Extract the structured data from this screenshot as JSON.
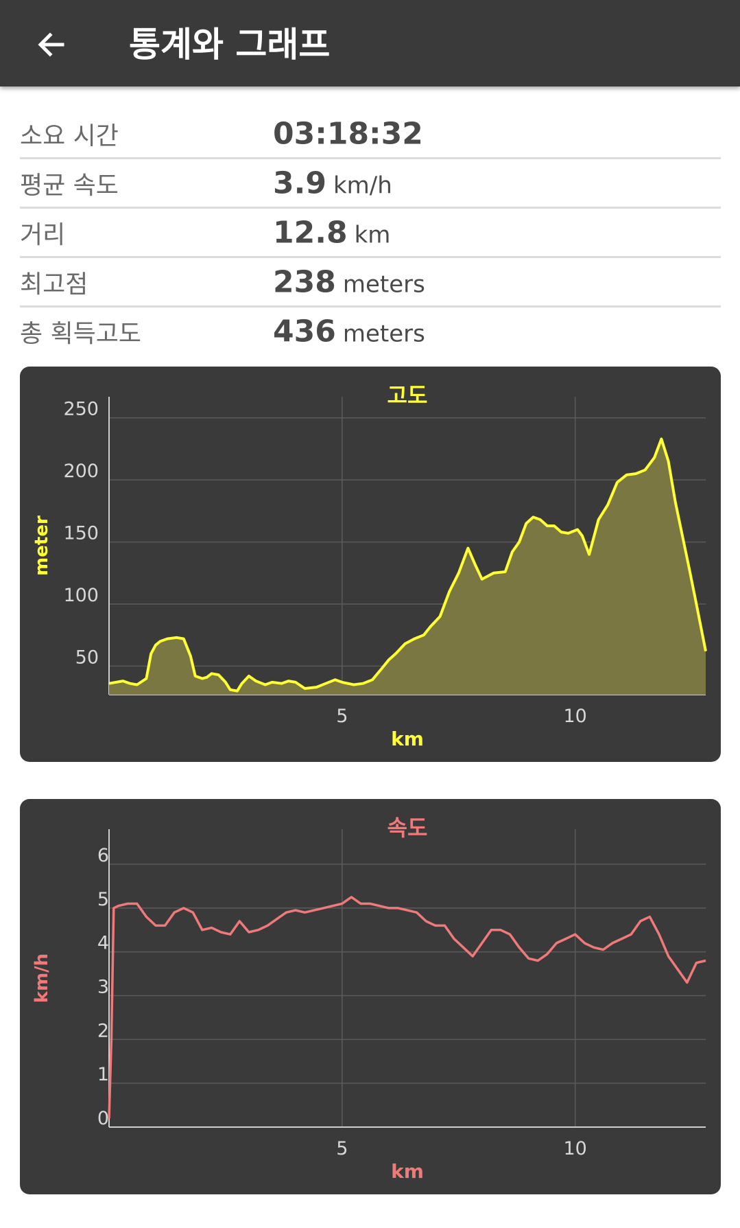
{
  "header": {
    "title": "통계와 그래프",
    "back_icon": "arrow-left-icon"
  },
  "stats": [
    {
      "label": "소요 시간",
      "value": "03:18:32",
      "unit": ""
    },
    {
      "label": "평균 속도",
      "value": "3.9",
      "unit": "km/h"
    },
    {
      "label": "거리",
      "value": "12.8",
      "unit": "km"
    },
    {
      "label": "최고점",
      "value": "238",
      "unit": "meters"
    },
    {
      "label": "총 획득고도",
      "value": "436",
      "unit": "meters"
    }
  ],
  "chart_data": [
    {
      "type": "area",
      "title": "고도",
      "xlabel": "km",
      "ylabel": "meter",
      "color": "#ffff33",
      "fill": "#7a7742",
      "xlim": [
        0,
        12.8
      ],
      "ylim": [
        27,
        267
      ],
      "xticks": [
        5,
        10
      ],
      "yticks": [
        50,
        100,
        150,
        200,
        250
      ],
      "x": [
        0,
        0.3,
        0.45,
        0.6,
        0.8,
        0.9,
        1.0,
        1.1,
        1.25,
        1.45,
        1.6,
        1.75,
        1.85,
        2.0,
        2.1,
        2.2,
        2.35,
        2.5,
        2.6,
        2.75,
        2.85,
        3.0,
        3.15,
        3.35,
        3.5,
        3.7,
        3.85,
        4.0,
        4.2,
        4.45,
        4.65,
        4.85,
        5.0,
        5.25,
        5.45,
        5.65,
        5.85,
        6.0,
        6.15,
        6.35,
        6.55,
        6.75,
        6.9,
        7.1,
        7.3,
        7.5,
        7.7,
        7.85,
        8.0,
        8.1,
        8.25,
        8.5,
        8.65,
        8.8,
        8.95,
        9.1,
        9.25,
        9.4,
        9.55,
        9.7,
        9.85,
        10.05,
        10.15,
        10.3,
        10.5,
        10.7,
        10.9,
        11.1,
        11.3,
        11.5,
        11.7,
        11.85,
        12.0,
        12.15,
        12.3,
        12.45,
        12.6,
        12.8
      ],
      "y": [
        36,
        38,
        36,
        35,
        40,
        60,
        67,
        70,
        72,
        73,
        72,
        58,
        42,
        40,
        41,
        44,
        43,
        37,
        31,
        30,
        36,
        42,
        38,
        35,
        37,
        36,
        38,
        37,
        32,
        33,
        36,
        39,
        37,
        35,
        36,
        39,
        48,
        55,
        60,
        68,
        72,
        75,
        82,
        90,
        110,
        125,
        145,
        132,
        120,
        122,
        125,
        126,
        142,
        150,
        165,
        170,
        168,
        163,
        163,
        158,
        157,
        160,
        155,
        140,
        168,
        180,
        198,
        204,
        205,
        208,
        218,
        233,
        215,
        182,
        155,
        128,
        100,
        62
      ]
    },
    {
      "type": "line",
      "title": "속도",
      "xlabel": "km",
      "ylabel": "km/h",
      "color": "#f07a7a",
      "xlim": [
        0,
        12.8
      ],
      "ylim": [
        0,
        6.8
      ],
      "xticks": [
        5,
        10
      ],
      "yticks": [
        0,
        1,
        2,
        3,
        4,
        5,
        6
      ],
      "x": [
        0,
        0.05,
        0.1,
        0.2,
        0.4,
        0.6,
        0.8,
        1.0,
        1.2,
        1.4,
        1.6,
        1.8,
        2.0,
        2.2,
        2.4,
        2.6,
        2.8,
        3.0,
        3.2,
        3.4,
        3.6,
        3.8,
        4.0,
        4.2,
        4.4,
        4.6,
        4.8,
        5.0,
        5.2,
        5.4,
        5.6,
        5.8,
        6.0,
        6.2,
        6.4,
        6.6,
        6.8,
        7.0,
        7.2,
        7.4,
        7.6,
        7.8,
        8.0,
        8.2,
        8.4,
        8.6,
        8.8,
        9.0,
        9.2,
        9.4,
        9.6,
        9.8,
        10.0,
        10.2,
        10.4,
        10.6,
        10.8,
        11.0,
        11.2,
        11.4,
        11.6,
        11.8,
        12.0,
        12.2,
        12.4,
        12.6,
        12.8
      ],
      "y": [
        0.2,
        2.0,
        5.0,
        5.05,
        5.1,
        5.1,
        4.8,
        4.6,
        4.6,
        4.9,
        5.0,
        4.9,
        4.5,
        4.55,
        4.45,
        4.4,
        4.7,
        4.45,
        4.5,
        4.6,
        4.75,
        4.9,
        4.95,
        4.9,
        4.95,
        5.0,
        5.05,
        5.1,
        5.25,
        5.1,
        5.1,
        5.05,
        5.0,
        5.0,
        4.95,
        4.9,
        4.7,
        4.6,
        4.6,
        4.3,
        4.1,
        3.9,
        4.2,
        4.5,
        4.5,
        4.4,
        4.1,
        3.85,
        3.8,
        3.95,
        4.2,
        4.3,
        4.4,
        4.2,
        4.1,
        4.05,
        4.2,
        4.3,
        4.4,
        4.7,
        4.8,
        4.4,
        3.9,
        3.6,
        3.3,
        3.75,
        3.8
      ]
    }
  ]
}
